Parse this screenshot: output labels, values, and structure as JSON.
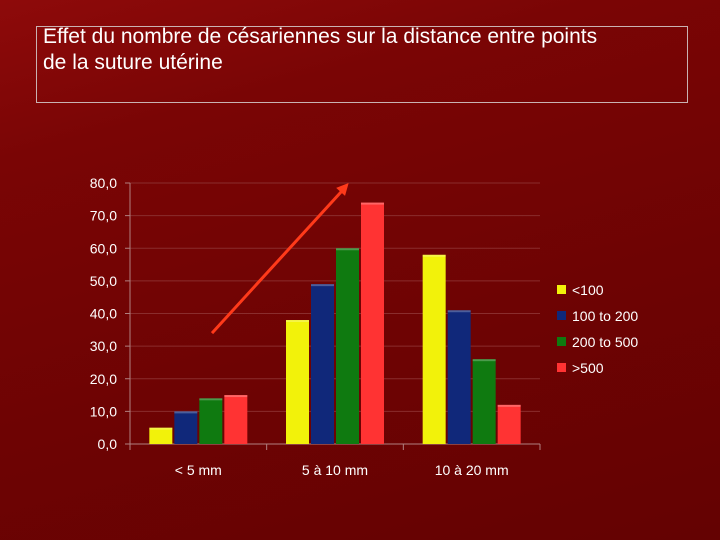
{
  "title": "Effet du nombre de césariennes sur la distance entre points\nde la suture utérine",
  "chart_data": {
    "type": "bar",
    "categories": [
      "< 5 mm",
      "5 à 10 mm",
      "10 à 20 mm"
    ],
    "series": [
      {
        "name": "<100",
        "values": [
          5,
          38,
          58
        ],
        "color": "#f2f20a"
      },
      {
        "name": "100 to 200",
        "values": [
          10,
          49,
          41
        ],
        "color": "#10287a"
      },
      {
        "name": "200 to 500",
        "values": [
          14,
          60,
          26
        ],
        "color": "#0f7a10"
      },
      {
        "name": ">500",
        "values": [
          15,
          74,
          12
        ],
        "color": "#ff3333"
      }
    ],
    "yticks": [
      "0,0",
      "10,0",
      "20,0",
      "30,0",
      "40,0",
      "50,0",
      "60,0",
      "70,0",
      "80,0"
    ],
    "ylim": [
      0,
      80
    ],
    "grid": true,
    "legend": "right",
    "annotation": {
      "type": "arrow",
      "color": "#ff3a1a",
      "from": [
        0.1,
        34
      ],
      "to": [
        1.1,
        80
      ]
    }
  }
}
